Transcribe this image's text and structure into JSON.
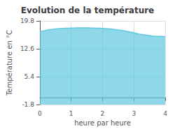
{
  "chart_data": {
    "type": "area",
    "title": "Evolution de la température",
    "xlabel": "heure par heure",
    "ylabel": "Température en °C",
    "color": "#60c8e0",
    "x": [
      0.0,
      0.083,
      0.167,
      0.25,
      0.333,
      0.417,
      0.5,
      0.583,
      0.667,
      0.75,
      0.833,
      0.917,
      1.0,
      1.083,
      1.167,
      1.25,
      1.333,
      1.417,
      1.5,
      1.583,
      1.667,
      1.75,
      1.833,
      1.917,
      2.0,
      2.083,
      2.167,
      2.25,
      2.333,
      2.417,
      2.5,
      2.583,
      2.667,
      2.75,
      2.833,
      2.917,
      3.0,
      3.083,
      3.167,
      3.25,
      3.333,
      3.417,
      3.5,
      3.583,
      3.667,
      3.75,
      3.833,
      3.917,
      4.0
    ],
    "values": [
      17.0,
      17.15,
      17.3,
      17.45,
      17.55,
      17.65,
      17.72,
      17.78,
      17.83,
      17.87,
      17.9,
      17.93,
      17.95,
      17.97,
      17.98,
      17.99,
      18.0,
      18.0,
      17.99,
      17.98,
      17.97,
      17.95,
      17.93,
      17.9,
      17.87,
      17.83,
      17.78,
      17.72,
      17.65,
      17.57,
      17.48,
      17.38,
      17.27,
      17.15,
      17.02,
      16.88,
      16.73,
      16.57,
      16.4,
      16.3,
      16.2,
      16.1,
      16.0,
      15.9,
      15.85,
      15.8,
      15.78,
      15.75,
      15.73
    ],
    "xlim": [
      0,
      4
    ],
    "xticks": [
      0,
      1,
      2,
      3,
      4
    ],
    "ylim": [
      -1.8,
      19.8
    ],
    "yticks": [
      -1.8,
      5.4,
      12.6,
      19.8
    ],
    "grid": true
  }
}
